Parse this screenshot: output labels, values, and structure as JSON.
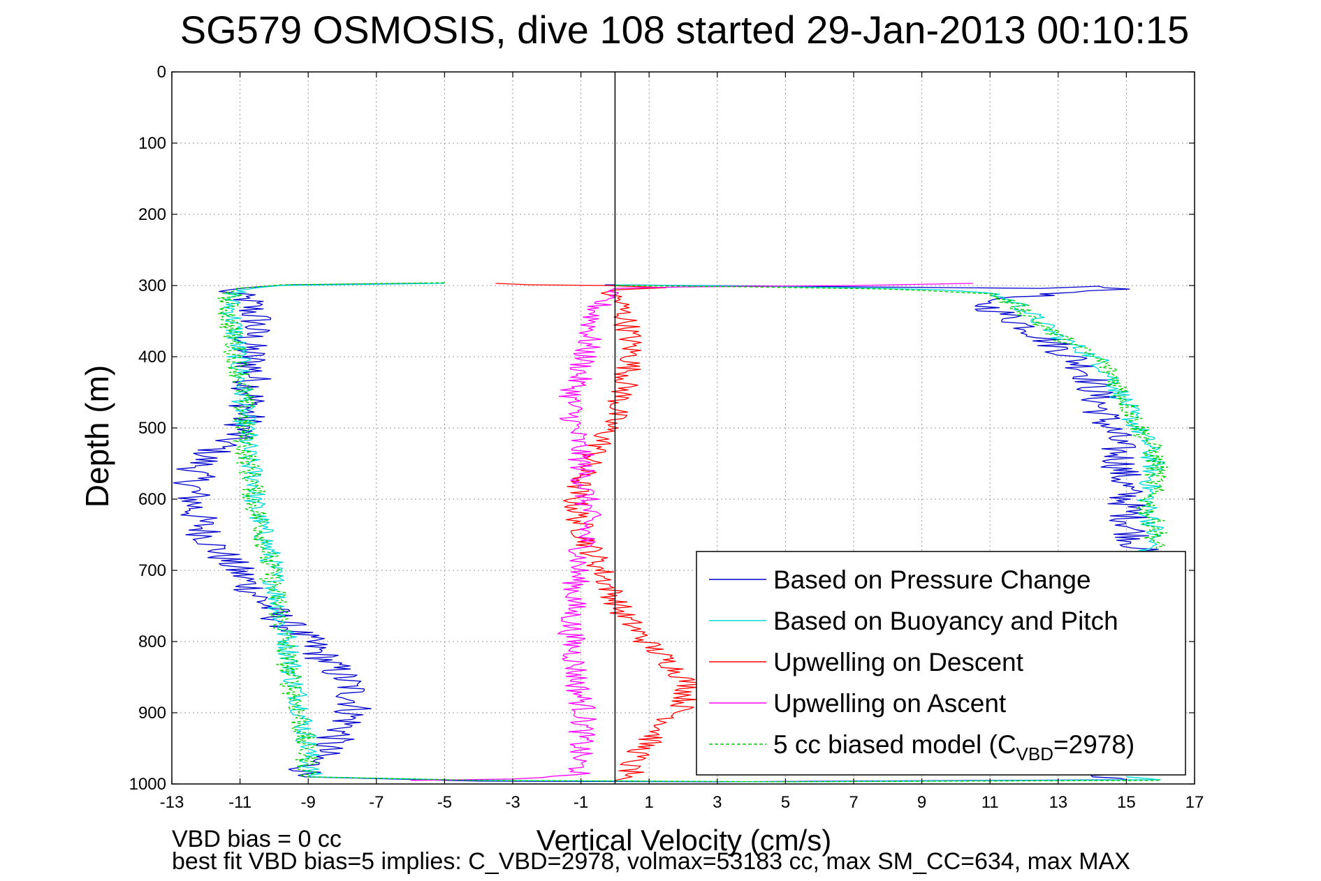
{
  "chart_data": {
    "type": "line",
    "title": "SG579 OSMOSIS, dive 108 started 29-Jan-2013 00:10:15",
    "xlabel": "Vertical Velocity (cm/s)",
    "ylabel": "Depth (m)",
    "xlim": [
      -13,
      17
    ],
    "ylim": [
      0,
      1000
    ],
    "y_reversed": true,
    "grid": true,
    "legend_position": "bottom-right",
    "x_ticks": [
      "-13",
      "-11",
      "-9",
      "-7",
      "-5",
      "-3",
      "-1",
      "1",
      "3",
      "5",
      "7",
      "9",
      "11",
      "13",
      "15",
      "17"
    ],
    "y_ticks": [
      "0",
      "100",
      "200",
      "300",
      "400",
      "500",
      "600",
      "700",
      "800",
      "900",
      "1000"
    ],
    "zero_line": 0,
    "footnotes": [
      "VBD bias = 0 cc",
      "best fit VBD bias=5 implies: C_VBD=2978, volmax=53183 cc, max SM_CC=634, max MAX"
    ],
    "series": [
      {
        "name": "Based on Pressure Change",
        "color": "#0000cc",
        "style": "solid",
        "noise": 0.6,
        "points": [
          [
            -5.5,
            297
          ],
          [
            -9.5,
            299
          ],
          [
            -10.8,
            303
          ],
          [
            -11.5,
            306
          ],
          [
            -10.8,
            320
          ],
          [
            -10.5,
            350
          ],
          [
            -10.8,
            380
          ],
          [
            -10.6,
            420
          ],
          [
            -10.7,
            460
          ],
          [
            -10.9,
            500
          ],
          [
            -11.4,
            520
          ],
          [
            -12.0,
            540
          ],
          [
            -12.3,
            560
          ],
          [
            -12.4,
            590
          ],
          [
            -12.3,
            620
          ],
          [
            -12.0,
            650
          ],
          [
            -11.5,
            680
          ],
          [
            -10.9,
            710
          ],
          [
            -10.4,
            740
          ],
          [
            -9.8,
            770
          ],
          [
            -9.0,
            800
          ],
          [
            -8.4,
            830
          ],
          [
            -7.8,
            860
          ],
          [
            -7.6,
            890
          ],
          [
            -7.9,
            920
          ],
          [
            -8.5,
            950
          ],
          [
            -9.0,
            975
          ],
          [
            -9.1,
            990
          ],
          [
            -4.0,
            996
          ],
          [
            3.0,
            997
          ],
          [
            15.0,
            994
          ],
          [
            14.6,
            990
          ],
          [
            13.8,
            980
          ],
          [
            12.5,
            960
          ],
          [
            12.0,
            940
          ]
        ],
        "points2": [
          [
            -0.3,
            299
          ],
          [
            5.0,
            301
          ],
          [
            10.0,
            303
          ],
          [
            12.5,
            304
          ],
          [
            14.2,
            301
          ],
          [
            14.5,
            305
          ],
          [
            13.0,
            312
          ],
          [
            10.5,
            320
          ],
          [
            11.4,
            340
          ],
          [
            12.2,
            360
          ],
          [
            12.8,
            380
          ],
          [
            13.4,
            400
          ],
          [
            13.9,
            420
          ],
          [
            14.1,
            450
          ],
          [
            14.3,
            480
          ],
          [
            14.6,
            510
          ],
          [
            14.8,
            540
          ],
          [
            14.9,
            570
          ],
          [
            15.0,
            600
          ],
          [
            15.1,
            630
          ],
          [
            15.3,
            660
          ],
          [
            15.4,
            675
          ]
        ]
      },
      {
        "name": "Based on Buoyancy and Pitch",
        "color": "#00d8d8",
        "style": "solid",
        "noise": 0.35,
        "points": [
          [
            -5.0,
            297
          ],
          [
            -9.8,
            300
          ],
          [
            -11.0,
            305
          ],
          [
            -11.3,
            320
          ],
          [
            -11.2,
            350
          ],
          [
            -11.1,
            380
          ],
          [
            -11.0,
            420
          ],
          [
            -10.9,
            450
          ],
          [
            -10.9,
            480
          ],
          [
            -10.8,
            510
          ],
          [
            -10.8,
            540
          ],
          [
            -10.6,
            565
          ],
          [
            -10.5,
            580
          ],
          [
            -10.6,
            600
          ],
          [
            -10.5,
            620
          ],
          [
            -10.3,
            650
          ],
          [
            -10.1,
            680
          ],
          [
            -10.0,
            710
          ],
          [
            -9.9,
            740
          ],
          [
            -9.8,
            770
          ],
          [
            -9.6,
            800
          ],
          [
            -9.5,
            830
          ],
          [
            -9.4,
            860
          ],
          [
            -9.2,
            890
          ],
          [
            -9.1,
            920
          ],
          [
            -9.0,
            950
          ],
          [
            -9.0,
            975
          ],
          [
            -8.9,
            990
          ],
          [
            -4.0,
            995
          ],
          [
            5.0,
            997
          ],
          [
            16.0,
            994
          ],
          [
            15.0,
            990
          ]
        ],
        "points2": [
          [
            0.0,
            299
          ],
          [
            4.0,
            301
          ],
          [
            8.0,
            304
          ],
          [
            9.5,
            306
          ],
          [
            11.0,
            310
          ],
          [
            11.8,
            325
          ],
          [
            12.3,
            345
          ],
          [
            12.8,
            365
          ],
          [
            13.5,
            385
          ],
          [
            14.2,
            405
          ],
          [
            14.6,
            430
          ],
          [
            14.9,
            460
          ],
          [
            15.2,
            490
          ],
          [
            15.6,
            520
          ],
          [
            15.8,
            550
          ],
          [
            15.7,
            580
          ],
          [
            15.6,
            610
          ],
          [
            15.8,
            640
          ],
          [
            15.7,
            670
          ],
          [
            15.5,
            680
          ]
        ]
      },
      {
        "name": "Upwelling on Descent",
        "color": "#ff0000",
        "style": "solid",
        "noise": 0.4,
        "points": [
          [
            -3.5,
            297
          ],
          [
            -2.5,
            299
          ],
          [
            -0.2,
            300
          ],
          [
            1.5,
            303
          ],
          [
            -0.3,
            306
          ],
          [
            0.1,
            320
          ],
          [
            0.4,
            360
          ],
          [
            0.5,
            400
          ],
          [
            0.3,
            440
          ],
          [
            0.0,
            480
          ],
          [
            -0.4,
            520
          ],
          [
            -0.9,
            560
          ],
          [
            -1.2,
            600
          ],
          [
            -1.0,
            640
          ],
          [
            -0.6,
            680
          ],
          [
            -0.2,
            720
          ],
          [
            0.2,
            760
          ],
          [
            0.9,
            800
          ],
          [
            1.6,
            830
          ],
          [
            2.2,
            860
          ],
          [
            2.0,
            890
          ],
          [
            1.4,
            920
          ],
          [
            0.8,
            950
          ],
          [
            0.4,
            975
          ],
          [
            0.5,
            990
          ],
          [
            0.0,
            995
          ]
        ]
      },
      {
        "name": "Upwelling on Ascent",
        "color": "#ff00ff",
        "style": "solid",
        "noise": 0.4,
        "points": [
          [
            10.5,
            297
          ],
          [
            7.0,
            300
          ],
          [
            2.0,
            302
          ],
          [
            0.0,
            304
          ],
          [
            -0.3,
            310
          ],
          [
            -0.6,
            340
          ],
          [
            -0.8,
            380
          ],
          [
            -1.0,
            420
          ],
          [
            -1.3,
            460
          ],
          [
            -1.2,
            500
          ],
          [
            -1.0,
            540
          ],
          [
            -0.9,
            580
          ],
          [
            -0.8,
            620
          ],
          [
            -0.9,
            660
          ],
          [
            -1.1,
            700
          ],
          [
            -1.2,
            740
          ],
          [
            -1.3,
            780
          ],
          [
            -1.2,
            820
          ],
          [
            -1.1,
            860
          ],
          [
            -0.9,
            900
          ],
          [
            -1.0,
            940
          ],
          [
            -1.1,
            970
          ],
          [
            -1.0,
            985
          ],
          [
            -3.0,
            993
          ],
          [
            -6.0,
            995
          ]
        ]
      },
      {
        "name": "5 cc biased model (C",
        "name_sub": "VBD",
        "name_tail": "=2978)",
        "color": "#00cc00",
        "style": "dashed",
        "noise": 0.35,
        "points": [
          [
            -5.0,
            296
          ],
          [
            -9.8,
            299
          ],
          [
            -11.0,
            304
          ],
          [
            -11.4,
            320
          ],
          [
            -11.3,
            350
          ],
          [
            -11.2,
            380
          ],
          [
            -11.0,
            420
          ],
          [
            -10.9,
            450
          ],
          [
            -10.9,
            480
          ],
          [
            -10.9,
            510
          ],
          [
            -10.8,
            540
          ],
          [
            -10.7,
            565
          ],
          [
            -10.6,
            580
          ],
          [
            -10.6,
            600
          ],
          [
            -10.5,
            620
          ],
          [
            -10.3,
            650
          ],
          [
            -10.2,
            680
          ],
          [
            -10.1,
            710
          ],
          [
            -9.9,
            740
          ],
          [
            -9.8,
            770
          ],
          [
            -9.7,
            800
          ],
          [
            -9.6,
            830
          ],
          [
            -9.5,
            860
          ],
          [
            -9.3,
            890
          ],
          [
            -9.2,
            920
          ],
          [
            -9.1,
            950
          ],
          [
            -9.0,
            975
          ],
          [
            -9.0,
            990
          ],
          [
            -4.0,
            995
          ],
          [
            5.0,
            997
          ],
          [
            16.0,
            995
          ]
        ],
        "points2": [
          [
            0.0,
            300
          ],
          [
            4.0,
            302
          ],
          [
            8.0,
            305
          ],
          [
            9.5,
            308
          ],
          [
            11.0,
            312
          ],
          [
            11.8,
            328
          ],
          [
            12.3,
            348
          ],
          [
            12.9,
            368
          ],
          [
            13.6,
            388
          ],
          [
            14.3,
            408
          ],
          [
            14.7,
            433
          ],
          [
            15.0,
            463
          ],
          [
            15.3,
            493
          ],
          [
            15.7,
            523
          ],
          [
            15.9,
            553
          ],
          [
            15.8,
            583
          ],
          [
            15.6,
            613
          ],
          [
            15.9,
            643
          ],
          [
            15.8,
            672
          ]
        ]
      }
    ]
  }
}
